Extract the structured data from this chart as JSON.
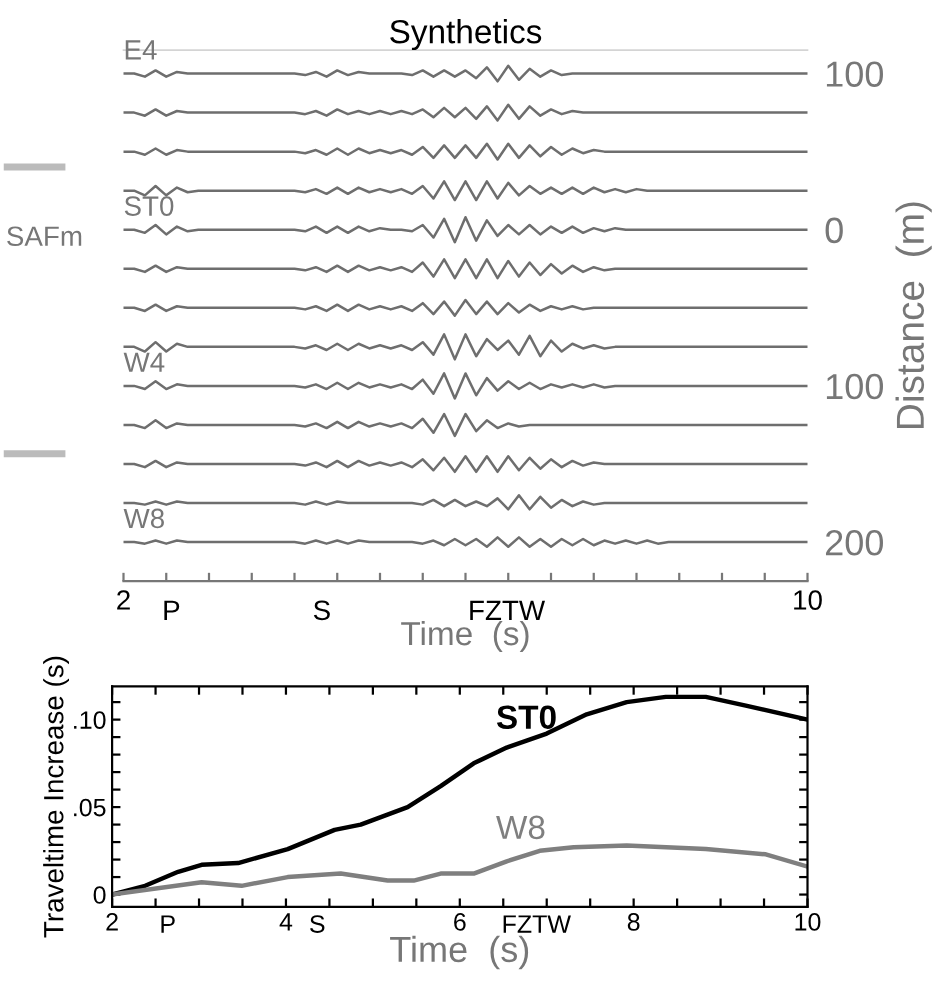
{
  "chart_data": [
    {
      "type": "line",
      "title": "Synthetics",
      "xlabel": "Time  (s)",
      "ylabel": "Distance  (m)",
      "color": "#6e6e6e",
      "x": [
        2,
        2.125,
        2.25,
        2.375,
        2.5,
        2.625,
        2.75,
        2.875,
        3,
        3.125,
        3.25,
        3.375,
        3.5,
        3.625,
        3.75,
        3.875,
        4,
        4.125,
        4.25,
        4.375,
        4.5,
        4.625,
        4.75,
        4.875,
        5,
        5.125,
        5.25,
        5.375,
        5.5,
        5.625,
        5.75,
        5.875,
        6,
        6.125,
        6.25,
        6.375,
        6.5,
        6.625,
        6.75,
        6.875,
        7,
        7.125,
        7.25,
        7.375,
        7.5,
        7.625,
        7.75,
        7.875,
        8,
        8.125,
        8.25,
        8.375,
        8.5,
        8.625,
        8.75,
        8.875,
        9,
        9.125,
        9.25,
        9.375,
        9.5,
        9.625,
        9.75,
        9.875,
        10
      ],
      "series": [
        {
          "name": "E4",
          "values": [
            -100,
            -100,
            -98,
            -102,
            -98,
            -101,
            -100,
            -100,
            -100,
            -100,
            -100,
            -100,
            -100,
            -100,
            -100,
            -100,
            -100,
            -99,
            -101,
            -98,
            -102,
            -99,
            -101,
            -100,
            -100,
            -100,
            -100,
            -99,
            -102,
            -98,
            -102,
            -98,
            -102,
            -97,
            -104,
            -95,
            -105,
            -96,
            -103,
            -98,
            -102,
            -99,
            -100,
            -100,
            -100,
            -100,
            -100,
            -100,
            -100,
            -100,
            -100,
            -100,
            -100,
            -100,
            -100,
            -100,
            -100,
            -100,
            -100,
            -100,
            -100,
            -100,
            -100,
            -100,
            -100
          ]
        },
        {
          "values": [
            -75,
            -75,
            -73,
            -77,
            -73,
            -76,
            -75,
            -75,
            -75,
            -75,
            -75,
            -75,
            -75,
            -75,
            -75,
            -75,
            -75,
            -74,
            -76,
            -73,
            -77,
            -74,
            -76,
            -74,
            -76,
            -74,
            -76,
            -74,
            -77,
            -72,
            -78,
            -72,
            -78,
            -71,
            -79,
            -70,
            -80,
            -71,
            -79,
            -73,
            -77,
            -74,
            -76,
            -75,
            -75,
            -75,
            -75,
            -75,
            -75,
            -75,
            -75,
            -75,
            -75,
            -75,
            -75,
            -75,
            -75,
            -75,
            -75,
            -75,
            -75,
            -75,
            -75,
            -75,
            -75
          ]
        },
        {
          "values": [
            -50,
            -50,
            -48,
            -52,
            -48,
            -51,
            -50,
            -50,
            -50,
            -50,
            -50,
            -50,
            -50,
            -50,
            -50,
            -50,
            -50,
            -49,
            -51,
            -48,
            -52,
            -48,
            -52,
            -49,
            -51,
            -49,
            -51,
            -48,
            -53,
            -46,
            -54,
            -46,
            -54,
            -46,
            -55,
            -45,
            -55,
            -46,
            -54,
            -47,
            -53,
            -48,
            -52,
            -49,
            -51,
            -50,
            -50,
            -50,
            -50,
            -50,
            -50,
            -50,
            -50,
            -50,
            -50,
            -50,
            -50,
            -50,
            -50,
            -50,
            -50,
            -50,
            -50,
            -50,
            -50
          ]
        },
        {
          "values": [
            -25,
            -25,
            -22,
            -28,
            -22,
            -27,
            -24,
            -25,
            -25,
            -25,
            -25,
            -25,
            -25,
            -25,
            -25,
            -25,
            -25,
            -24,
            -26,
            -23,
            -27,
            -23,
            -27,
            -24,
            -26,
            -24,
            -26,
            -23,
            -28,
            -20,
            -31,
            -19,
            -31,
            -19,
            -31,
            -20,
            -30,
            -22,
            -28,
            -23,
            -27,
            -23,
            -27,
            -23,
            -27,
            -24,
            -26,
            -24,
            -26,
            -25,
            -25,
            -25,
            -25,
            -25,
            -25,
            -25,
            -25,
            -25,
            -25,
            -25,
            -25,
            -25,
            -25,
            -25,
            -25
          ]
        },
        {
          "name": "ST0",
          "values": [
            0,
            0,
            2,
            -3,
            3,
            -2,
            1,
            0,
            0,
            0,
            0,
            0,
            0,
            0,
            0,
            0,
            0,
            1,
            -2,
            2,
            -2,
            2,
            -2,
            1,
            -1,
            0,
            0,
            1,
            -3,
            5,
            -7,
            8,
            -8,
            7,
            -6,
            4,
            -3,
            3,
            -3,
            3,
            -2,
            2,
            -2,
            2,
            -1,
            1,
            -1,
            0,
            0,
            0,
            0,
            0,
            0,
            0,
            0,
            0,
            0,
            0,
            0,
            0,
            0,
            0,
            0,
            0,
            0
          ]
        },
        {
          "values": [
            25,
            25,
            27,
            23,
            27,
            24,
            25,
            25,
            25,
            25,
            25,
            25,
            25,
            25,
            25,
            25,
            25,
            26,
            24,
            27,
            23,
            27,
            23,
            26,
            24,
            26,
            24,
            27,
            21,
            30,
            19,
            31,
            19,
            31,
            19,
            31,
            20,
            30,
            21,
            29,
            22,
            28,
            23,
            27,
            24,
            26,
            25,
            25,
            25,
            25,
            25,
            25,
            25,
            25,
            25,
            25,
            25,
            25,
            25,
            25,
            25,
            25,
            25,
            25,
            25
          ]
        },
        {
          "values": [
            50,
            50,
            52,
            48,
            52,
            49,
            50,
            50,
            50,
            50,
            50,
            50,
            50,
            50,
            50,
            50,
            50,
            51,
            49,
            52,
            48,
            52,
            48,
            51,
            49,
            51,
            49,
            52,
            47,
            54,
            46,
            55,
            45,
            54,
            46,
            54,
            47,
            53,
            48,
            52,
            49,
            51,
            49,
            51,
            50,
            50,
            50,
            50,
            50,
            50,
            50,
            50,
            50,
            50,
            50,
            50,
            50,
            50,
            50,
            50,
            50,
            50,
            50,
            50,
            50
          ]
        },
        {
          "values": [
            75,
            75,
            78,
            72,
            78,
            73,
            75,
            75,
            75,
            75,
            75,
            75,
            75,
            75,
            75,
            75,
            75,
            76,
            74,
            77,
            73,
            77,
            73,
            76,
            74,
            76,
            74,
            77,
            72,
            80,
            67,
            83,
            67,
            81,
            70,
            77,
            71,
            80,
            68,
            81,
            71,
            78,
            73,
            76,
            74,
            76,
            75,
            75,
            75,
            75,
            75,
            75,
            75,
            75,
            75,
            75,
            75,
            75,
            75,
            75,
            75,
            75,
            75,
            75,
            75
          ]
        },
        {
          "name": "W4",
          "values": [
            100,
            100,
            102,
            97,
            102,
            99,
            100,
            100,
            100,
            100,
            100,
            100,
            100,
            100,
            100,
            100,
            100,
            101,
            99,
            102,
            98,
            102,
            98,
            101,
            99,
            101,
            99,
            102,
            96,
            105,
            92,
            108,
            92,
            106,
            95,
            103,
            97,
            102,
            98,
            102,
            99,
            101,
            99,
            101,
            99,
            101,
            100,
            100,
            100,
            100,
            100,
            100,
            100,
            100,
            100,
            100,
            100,
            100,
            100,
            100,
            100,
            100,
            100,
            100,
            100
          ]
        },
        {
          "values": [
            125,
            125,
            127,
            122,
            127,
            124,
            125,
            125,
            125,
            125,
            125,
            125,
            125,
            125,
            125,
            125,
            125,
            126,
            124,
            127,
            123,
            127,
            123,
            126,
            124,
            126,
            124,
            127,
            121,
            130,
            118,
            132,
            118,
            129,
            122,
            127,
            124,
            126,
            125,
            125,
            125,
            125,
            125,
            125,
            125,
            125,
            125,
            125,
            125,
            125,
            125,
            125,
            125,
            125,
            125,
            125,
            125,
            125,
            125,
            125,
            125,
            125,
            125,
            125,
            125
          ]
        },
        {
          "values": [
            150,
            150,
            152,
            148,
            152,
            149,
            150,
            150,
            150,
            150,
            150,
            150,
            150,
            150,
            150,
            150,
            150,
            151,
            149,
            152,
            148,
            152,
            148,
            151,
            149,
            151,
            149,
            152,
            147,
            154,
            146,
            155,
            145,
            155,
            145,
            155,
            145,
            154,
            146,
            153,
            147,
            152,
            148,
            151,
            149,
            150,
            150,
            150,
            150,
            150,
            150,
            150,
            150,
            150,
            150,
            150,
            150,
            150,
            150,
            150,
            150,
            150,
            150,
            150,
            150
          ]
        },
        {
          "values": [
            175,
            175,
            176,
            174,
            176,
            174,
            175,
            175,
            175,
            175,
            175,
            175,
            175,
            175,
            175,
            175,
            175,
            176,
            174,
            176,
            174,
            175,
            175,
            175,
            175,
            175,
            175,
            175,
            176,
            173,
            177,
            173,
            177,
            174,
            177,
            172,
            179,
            170,
            179,
            171,
            178,
            173,
            177,
            174,
            176,
            175,
            175,
            175,
            175,
            175,
            175,
            175,
            175,
            175,
            175,
            175,
            175,
            175,
            175,
            175,
            175,
            175,
            175,
            175,
            175
          ]
        },
        {
          "name": "W8",
          "values": [
            200,
            200,
            201,
            199,
            201,
            199,
            200,
            200,
            200,
            200,
            200,
            200,
            200,
            200,
            200,
            200,
            200,
            201,
            199,
            201,
            199,
            201,
            199,
            200,
            200,
            200,
            200,
            200,
            201,
            199,
            202,
            198,
            202,
            198,
            203,
            197,
            203,
            197,
            203,
            198,
            203,
            198,
            202,
            198,
            202,
            199,
            201,
            199,
            201,
            199,
            201,
            200,
            200,
            200,
            200,
            200,
            200,
            200,
            200,
            200,
            200,
            200,
            200,
            200,
            200
          ]
        }
      ],
      "xlim": [
        2,
        10
      ],
      "ylim": [
        225,
        -115
      ],
      "xticks": [
        2,
        {
          "value": 2.5,
          "label": null
        },
        {
          "value": 3,
          "label": null
        },
        {
          "value": 3.5,
          "label": null
        },
        {
          "value": 4,
          "label": null
        },
        {
          "value": 4.5,
          "label": null
        },
        {
          "value": 5,
          "label": null
        },
        {
          "value": 5.5,
          "label": null
        },
        {
          "value": 6,
          "label": null
        },
        {
          "value": 6.5,
          "label": null
        },
        {
          "value": 7,
          "label": null
        },
        {
          "value": 7.5,
          "label": null
        },
        {
          "value": 8,
          "label": null
        },
        {
          "value": 8.5,
          "label": null
        },
        {
          "value": 9,
          "label": null
        },
        {
          "value": 9.5,
          "label": null
        },
        10
      ],
      "yticks": [
        {
          "value": -100,
          "label": "100"
        },
        0,
        100,
        200
      ],
      "annotations": [
        "SAFm",
        "P",
        "S",
        "FZTW"
      ]
    },
    {
      "type": "line",
      "xlabel": "Time  (s)",
      "ylabel": "Traveltime Increase (s)",
      "series": [
        {
          "name": "ST0",
          "color": "#000000",
          "x": [
            2,
            2.38,
            2.76,
            3.03,
            3.45,
            4.02,
            4.56,
            4.86,
            5.4,
            5.78,
            6.16,
            6.54,
            7,
            7.46,
            7.92,
            8.37,
            8.83,
            9.29,
            10
          ],
          "values": [
            0,
            0.005,
            0.013,
            0.017,
            0.018,
            0.026,
            0.037,
            0.04,
            0.05,
            0.062,
            0.075,
            0.084,
            0.092,
            0.103,
            0.11,
            0.113,
            0.113,
            0.108,
            0.1
          ]
        },
        {
          "name": "W8",
          "color": "#7f7f7f",
          "x": [
            2,
            3.03,
            3.49,
            4.02,
            4.63,
            5.17,
            5.47,
            5.78,
            6.16,
            6.54,
            6.92,
            7.31,
            7.92,
            8.83,
            9.52,
            10
          ],
          "values": [
            0,
            0.007,
            0.005,
            0.01,
            0.012,
            0.008,
            0.008,
            0.012,
            0.012,
            0.019,
            0.025,
            0.027,
            0.028,
            0.026,
            0.023,
            0.016
          ]
        }
      ],
      "xlim": [
        2,
        10
      ],
      "ylim": [
        -0.007,
        0.119
      ],
      "xticks": [
        2,
        {
          "value": 2.5,
          "label": null
        },
        {
          "value": 3,
          "label": null
        },
        {
          "value": 3.5,
          "label": null
        },
        4,
        {
          "value": 4.5,
          "label": null
        },
        {
          "value": 5,
          "label": null
        },
        {
          "value": 5.5,
          "label": null
        },
        6,
        {
          "value": 6.5,
          "label": null
        },
        {
          "value": 7,
          "label": null
        },
        {
          "value": 7.5,
          "label": null
        },
        8,
        {
          "value": 8.5,
          "label": null
        },
        {
          "value": 9,
          "label": null
        },
        {
          "value": 9.5,
          "label": null
        },
        10
      ],
      "yticks": [
        0,
        {
          "value": 0.01,
          "label": null
        },
        {
          "value": 0.02,
          "label": null
        },
        {
          "value": 0.03,
          "label": null
        },
        {
          "value": 0.04,
          "label": null
        },
        {
          "value": 0.05,
          "label": ".05"
        },
        {
          "value": 0.06,
          "label": null
        },
        {
          "value": 0.07,
          "label": null
        },
        {
          "value": 0.08,
          "label": null
        },
        {
          "value": 0.09,
          "label": null
        },
        {
          "value": 0.1,
          "label": ".10"
        },
        {
          "value": 0.11,
          "label": null
        }
      ],
      "annotations": [
        "P",
        "S",
        "FZTW"
      ]
    }
  ]
}
